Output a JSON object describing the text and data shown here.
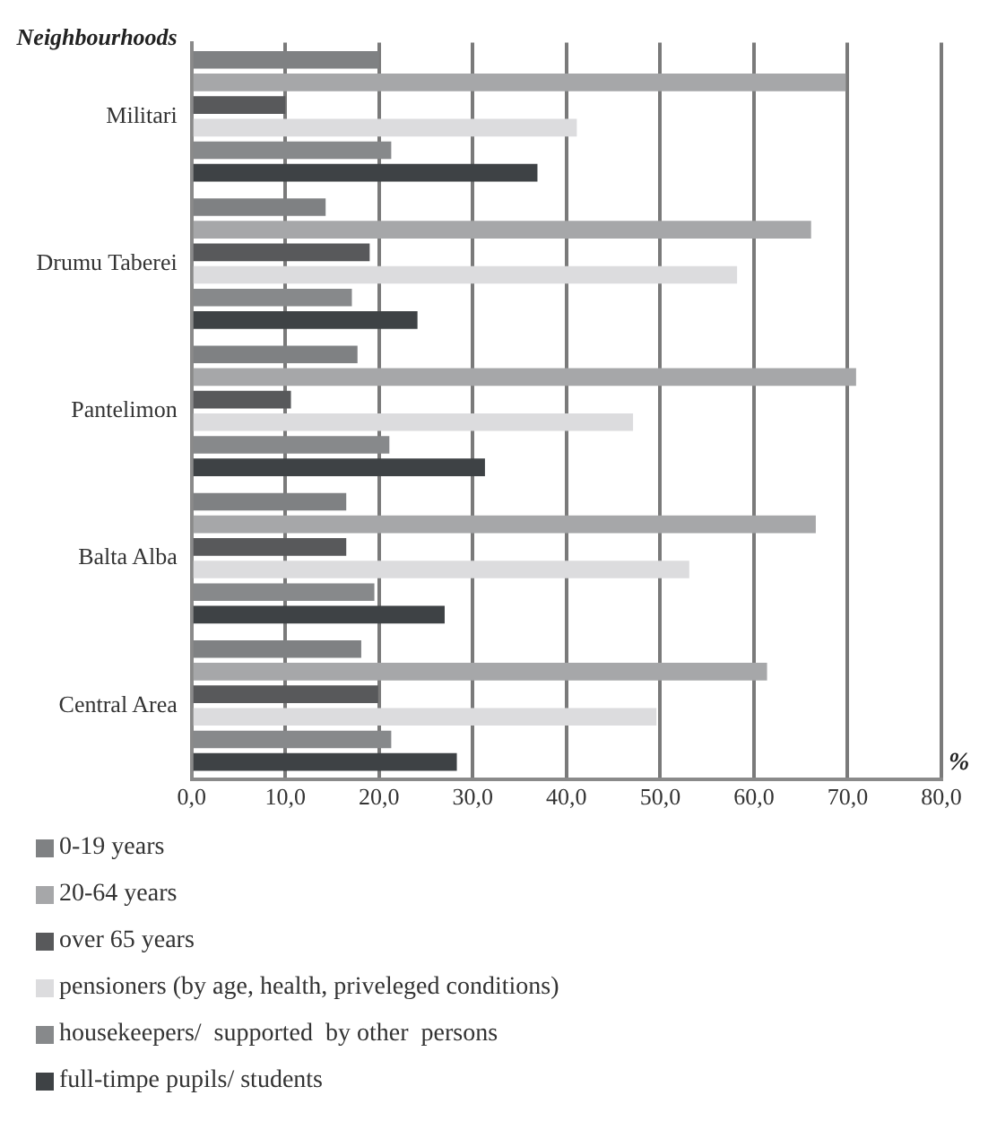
{
  "chart_data": {
    "type": "bar",
    "orientation": "horizontal",
    "ylabel": "Neighbourhoods",
    "xlabel": "%",
    "categories": [
      "Militari",
      "Drumu Taberei",
      "Pantelimon",
      "Balta Alba",
      "Central Area"
    ],
    "series": [
      {
        "name": "0-19 years",
        "color": "#7f8183",
        "values": [
          20.0,
          14.3,
          17.7,
          16.5,
          18.1
        ]
      },
      {
        "name": "20-64 years",
        "color": "#a6a7a9",
        "values": [
          69.8,
          66.1,
          70.9,
          66.6,
          61.4
        ]
      },
      {
        "name": "over 65 years",
        "color": "#58595b",
        "values": [
          10.0,
          19.0,
          10.6,
          16.5,
          19.9
        ]
      },
      {
        "name": "pensioners (by age, health, priveleged conditions)",
        "color": "#dcdcde",
        "values": [
          41.1,
          58.2,
          47.1,
          53.1,
          49.6
        ]
      },
      {
        "name": "housekeepers/  supported  by other  persons",
        "color": "#87898b",
        "values": [
          21.3,
          17.1,
          21.1,
          19.5,
          21.3
        ]
      },
      {
        "name": "full-timpe pupils/ students",
        "color": "#3e4245",
        "values": [
          36.9,
          24.1,
          31.3,
          27.0,
          28.3
        ]
      }
    ],
    "xlim": [
      0,
      80
    ],
    "xticks": [
      {
        "value": 0,
        "label": "0,0"
      },
      {
        "value": 10,
        "label": "10,0"
      },
      {
        "value": 20,
        "label": "20,0"
      },
      {
        "value": 30,
        "label": "30,0"
      },
      {
        "value": 40,
        "label": "40,0"
      },
      {
        "value": 50,
        "label": "50,0"
      },
      {
        "value": 60,
        "label": "60,0"
      },
      {
        "value": 70,
        "label": "70,0"
      },
      {
        "value": 80,
        "label": "80,0"
      }
    ],
    "grid": "x",
    "legend": "bottom"
  }
}
